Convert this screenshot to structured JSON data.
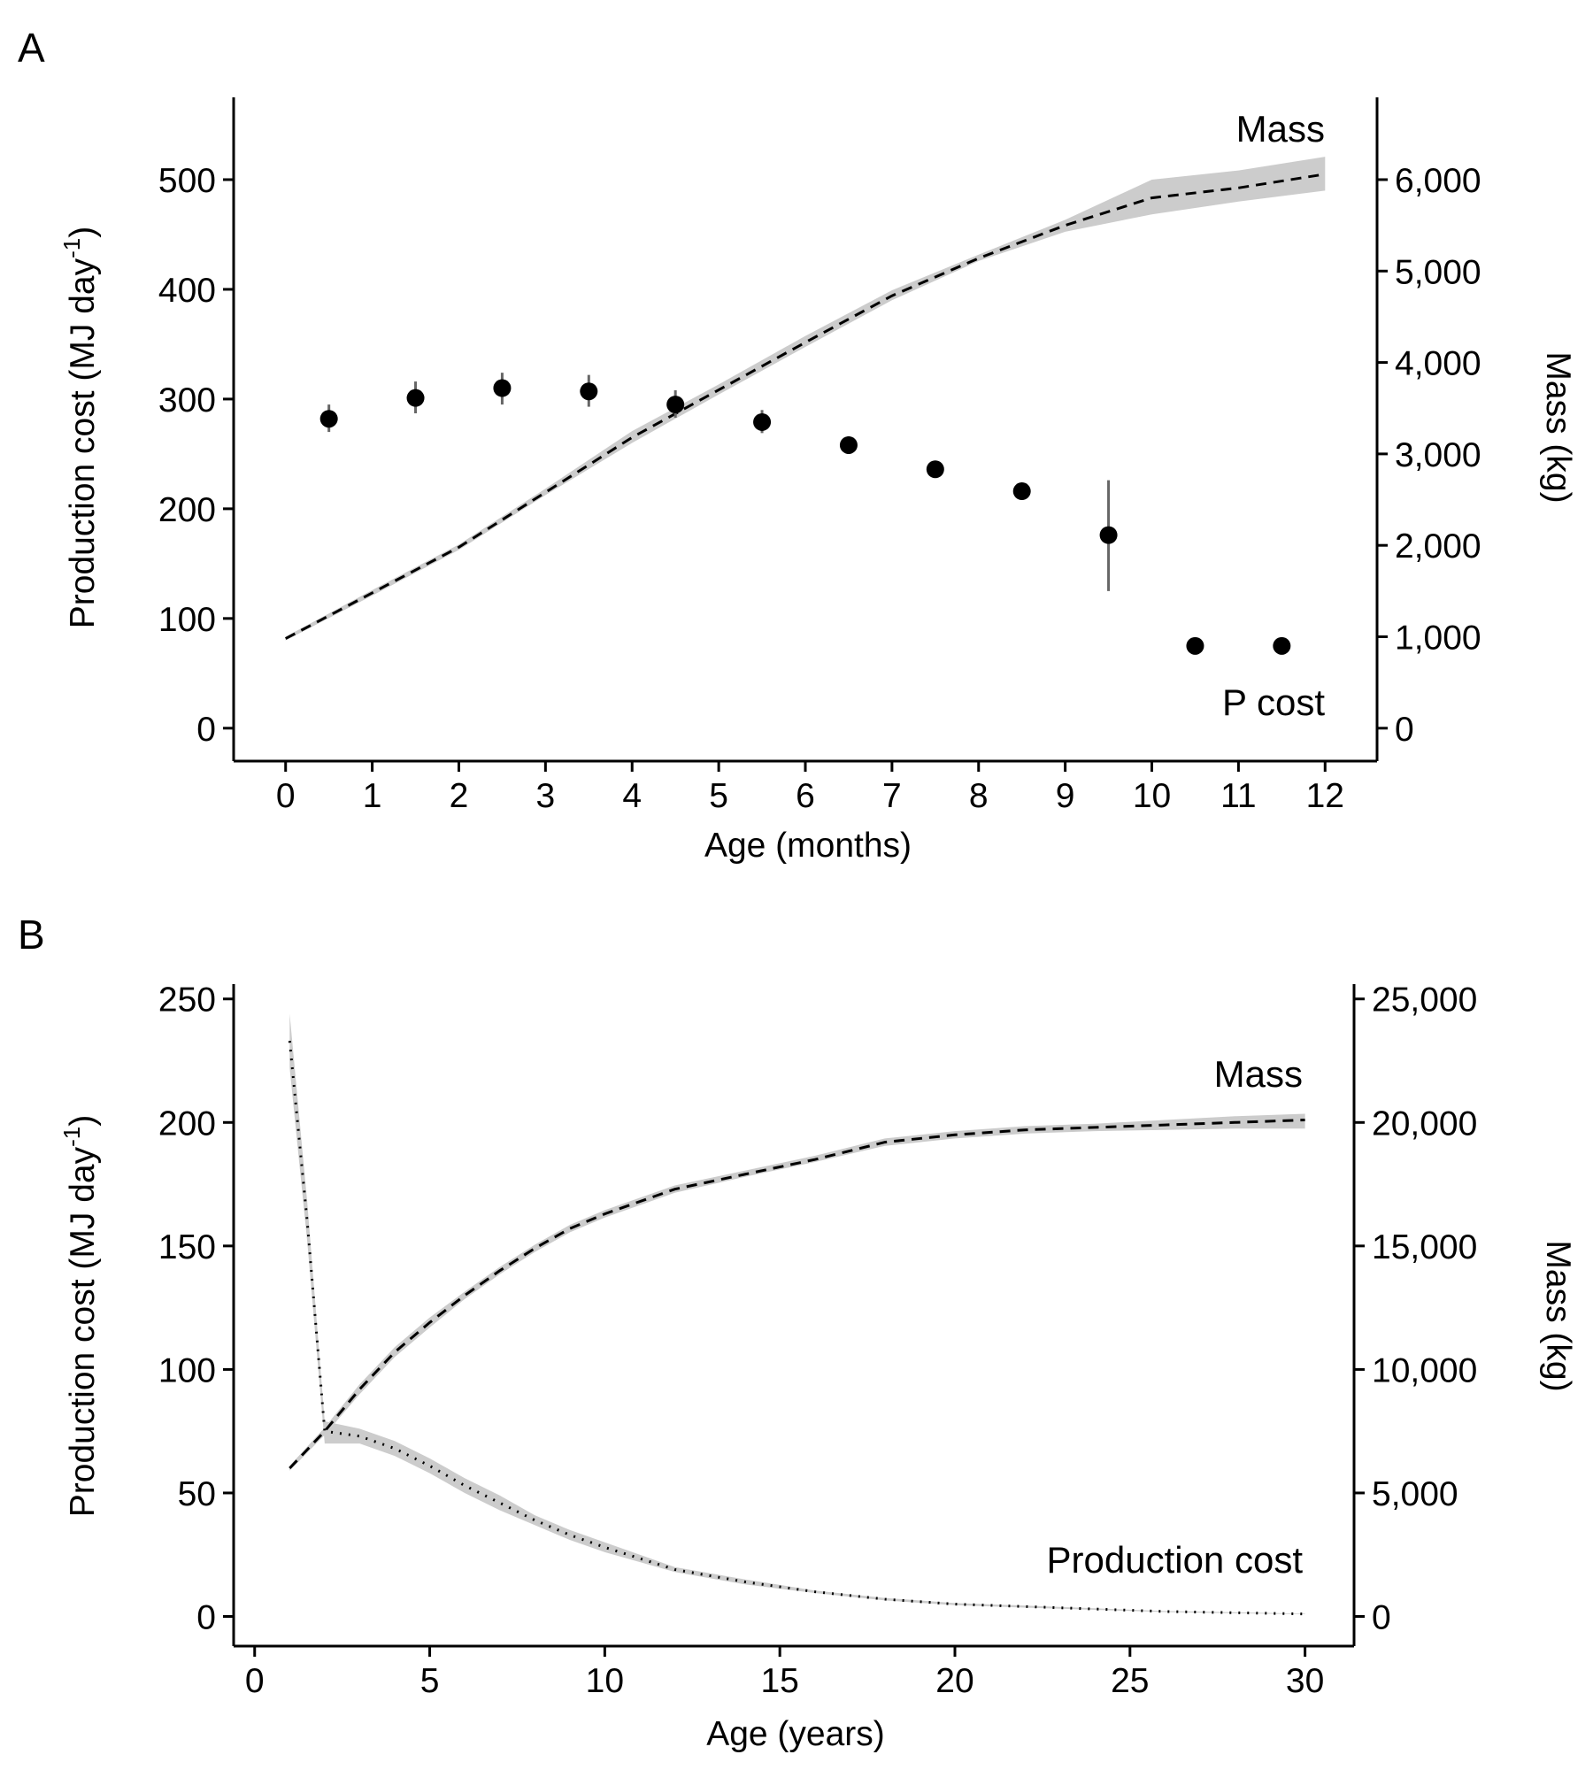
{
  "chart_data": [
    {
      "panel": "A",
      "type": "line",
      "xlabel": "Age (months)",
      "ylabel": "Production cost (MJ day",
      "ylabel_sup": "-1",
      "ylabel_tail": ")",
      "ylabel_right": "Mass (kg)",
      "xlim": [
        -0.6,
        12.6
      ],
      "ylim_left": [
        -30,
        575
      ],
      "ylim_right": [
        -360,
        6900
      ],
      "x_ticks": [
        0,
        1,
        2,
        3,
        4,
        5,
        6,
        7,
        8,
        9,
        10,
        11,
        12
      ],
      "x_tick_labels": [
        "0",
        "1",
        "2",
        "3",
        "4",
        "5",
        "6",
        "7",
        "8",
        "9",
        "10",
        "11",
        "12"
      ],
      "y_ticks_left": [
        0,
        100,
        200,
        300,
        400,
        500
      ],
      "y_tick_labels_left": [
        "0",
        "100",
        "200",
        "300",
        "400",
        "500"
      ],
      "y_ticks_right": [
        0,
        1000,
        2000,
        3000,
        4000,
        5000,
        6000
      ],
      "y_tick_labels_right": [
        "0",
        "1,000",
        "2,000",
        "3,000",
        "4,000",
        "5,000",
        "6,000"
      ],
      "annotations": [
        "Mass",
        "P cost"
      ],
      "grid": false,
      "series": [
        {
          "name": "Mass",
          "style": "dashed",
          "axis": "right",
          "x": [
            0,
            1,
            2,
            3,
            4,
            5,
            6,
            7,
            8,
            9,
            10,
            11,
            12
          ],
          "y": [
            980,
            1480,
            1980,
            2580,
            3180,
            3700,
            4220,
            4730,
            5140,
            5500,
            5800,
            5910,
            6060
          ],
          "band_lower": [
            960,
            1450,
            1950,
            2550,
            3120,
            3650,
            4170,
            4680,
            5110,
            5430,
            5620,
            5760,
            5880
          ],
          "band_upper": [
            1000,
            1510,
            2010,
            2620,
            3250,
            3760,
            4290,
            4790,
            5180,
            5560,
            6000,
            6100,
            6250
          ]
        },
        {
          "name": "P cost",
          "style": "points",
          "axis": "left",
          "x": [
            0.5,
            1.5,
            2.5,
            3.5,
            4.5,
            5.5,
            6.5,
            7.5,
            8.5,
            9.5,
            10.5,
            11.5
          ],
          "y": [
            282,
            301,
            310,
            307,
            295,
            279,
            258,
            236,
            216,
            176,
            75,
            75
          ],
          "err_lower": [
            270,
            287,
            295,
            293,
            283,
            269,
            250,
            230,
            210,
            125,
            72,
            72
          ],
          "err_upper": [
            295,
            316,
            324,
            322,
            308,
            290,
            266,
            242,
            222,
            226,
            78,
            78
          ]
        }
      ]
    },
    {
      "panel": "B",
      "type": "line",
      "xlabel": "Age (years)",
      "ylabel": "Production cost (MJ day",
      "ylabel_sup": "-1",
      "ylabel_tail": ")",
      "ylabel_right": "Mass (kg)",
      "xlim": [
        -0.6,
        31.4
      ],
      "ylim_left": [
        -12,
        256
      ],
      "ylim_right": [
        -1200,
        25600
      ],
      "x_ticks": [
        0,
        5,
        10,
        15,
        20,
        25,
        30
      ],
      "x_tick_labels": [
        "0",
        "5",
        "10",
        "15",
        "20",
        "25",
        "30"
      ],
      "y_ticks_left": [
        0,
        50,
        100,
        150,
        200,
        250
      ],
      "y_tick_labels_left": [
        "0",
        "50",
        "100",
        "150",
        "200",
        "250"
      ],
      "y_ticks_right": [
        0,
        5000,
        10000,
        15000,
        20000,
        25000
      ],
      "y_tick_labels_right": [
        "0",
        "5,000",
        "10,000",
        "15,000",
        "20,000",
        "25,000"
      ],
      "annotations": [
        "Mass",
        "Production cost"
      ],
      "grid": false,
      "series": [
        {
          "name": "Mass",
          "style": "dashed",
          "axis": "right",
          "x": [
            1,
            2,
            3,
            4,
            5,
            6,
            7,
            8,
            9,
            10,
            12,
            14,
            16,
            18,
            20,
            22,
            24,
            26,
            28,
            30
          ],
          "y": [
            6000,
            7500,
            9200,
            10700,
            11900,
            13000,
            14000,
            14900,
            15700,
            16300,
            17300,
            17900,
            18500,
            19200,
            19500,
            19700,
            19800,
            19900,
            20000,
            20100
          ],
          "band_lower": [
            5900,
            7350,
            9000,
            10500,
            11700,
            12850,
            13850,
            14750,
            15550,
            16150,
            17150,
            17800,
            18400,
            19050,
            19350,
            19550,
            19650,
            19700,
            19750,
            19750
          ],
          "band_upper": [
            6100,
            7650,
            9400,
            10900,
            12100,
            13150,
            14150,
            15050,
            15850,
            16450,
            17450,
            18050,
            18650,
            19350,
            19650,
            19850,
            19950,
            20100,
            20250,
            20350
          ]
        },
        {
          "name": "Production cost",
          "style": "dotted",
          "axis": "left",
          "x": [
            1,
            1.5,
            2,
            3,
            4,
            5,
            6,
            7,
            8,
            9,
            10,
            12,
            14,
            16,
            18,
            20,
            22,
            24,
            26,
            28,
            30
          ],
          "y": [
            233,
            160,
            75,
            73,
            68,
            61,
            53,
            46,
            39,
            33,
            28,
            19,
            14,
            10,
            7,
            5,
            4,
            3,
            2,
            1.5,
            1
          ],
          "band_lower": [
            222,
            152,
            70,
            70,
            65,
            58,
            50,
            43,
            37,
            31,
            26,
            18,
            13,
            9.5,
            6.5,
            4.6,
            3.6,
            2.7,
            1.8,
            1.3,
            0.9
          ],
          "band_upper": [
            244,
            168,
            79,
            76,
            71,
            64,
            56,
            49,
            41,
            35,
            30,
            20,
            15,
            10.5,
            7.5,
            5.4,
            4.4,
            3.3,
            2.2,
            1.7,
            1.1
          ]
        }
      ]
    }
  ]
}
